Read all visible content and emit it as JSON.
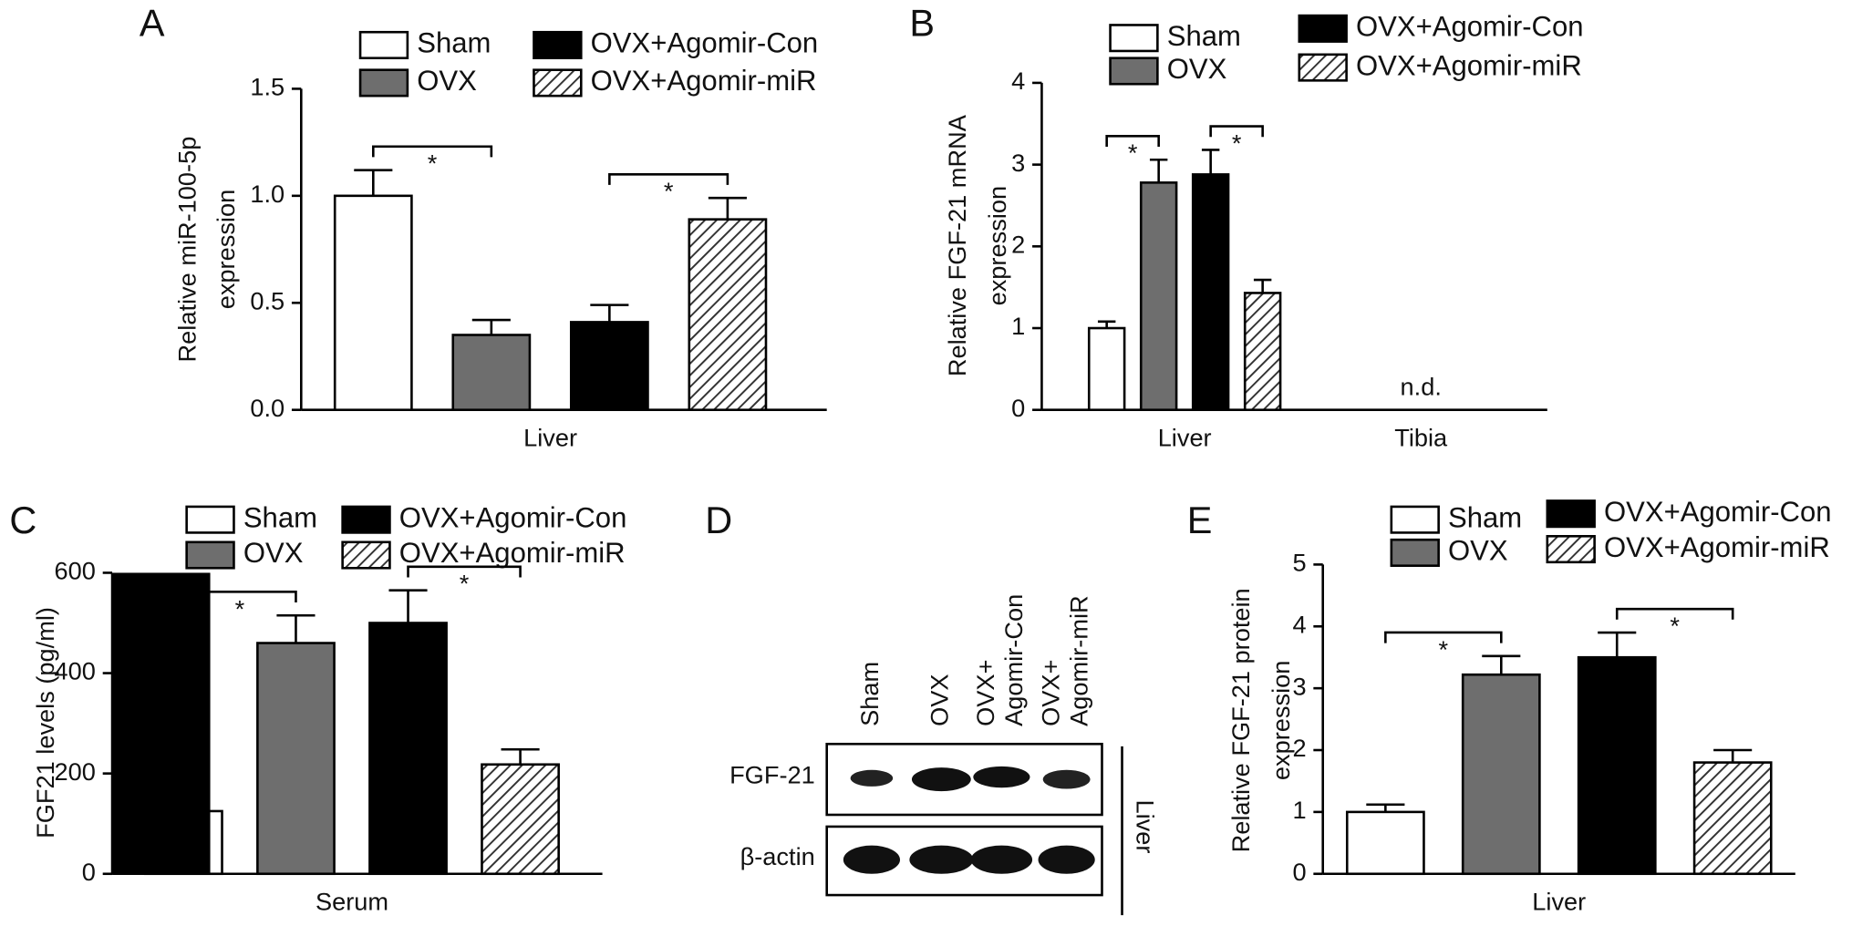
{
  "chart_data": [
    {
      "type": "bar",
      "panel": "A",
      "ylabel": [
        "Relative miR-100-5p",
        "expression"
      ],
      "categories": [
        "Liver"
      ],
      "series": [
        {
          "name": "Sham",
          "color": "#ffffff",
          "values": [
            1.0
          ],
          "errors": [
            0.12
          ]
        },
        {
          "name": "OVX",
          "color": "#6e6e6e",
          "values": [
            0.35
          ],
          "errors": [
            0.07
          ]
        },
        {
          "name": "OVX+Agomir-Con",
          "color": "#000000",
          "values": [
            0.41
          ],
          "errors": [
            0.08
          ]
        },
        {
          "name": "OVX+Agomir-miR",
          "color": "#ffffff",
          "pattern": "hatch",
          "values": [
            0.89
          ],
          "errors": [
            0.1
          ]
        }
      ],
      "ylim": [
        0,
        1.5
      ],
      "yticks": [
        {
          "value": 0,
          "label": "0.0"
        },
        0.5,
        {
          "value": 1,
          "label": "1.0"
        },
        1.5
      ],
      "significance": [
        {
          "between": [
            "Sham",
            "OVX"
          ],
          "label": "*"
        },
        {
          "between": [
            "OVX+Agomir-Con",
            "OVX+Agomir-miR"
          ],
          "label": "*"
        }
      ]
    },
    {
      "type": "bar",
      "panel": "B",
      "ylabel": [
        "Relative FGF-21 mRNA",
        "expression"
      ],
      "categories": [
        "Liver",
        "Tibia"
      ],
      "series": [
        {
          "name": "Sham",
          "color": "#ffffff",
          "values": [
            1.0,
            null
          ],
          "errors": [
            0.08,
            null
          ]
        },
        {
          "name": "OVX",
          "color": "#6e6e6e",
          "values": [
            2.78,
            null
          ],
          "errors": [
            0.28,
            null
          ]
        },
        {
          "name": "OVX+Agomir-Con",
          "color": "#000000",
          "values": [
            2.88,
            null
          ],
          "errors": [
            0.3,
            null
          ]
        },
        {
          "name": "OVX+Agomir-miR",
          "color": "#ffffff",
          "pattern": "hatch",
          "values": [
            1.43,
            null
          ],
          "errors": [
            0.16,
            null
          ]
        }
      ],
      "ylim": [
        0,
        4
      ],
      "yticks": [
        0,
        1,
        2,
        3,
        4
      ],
      "annotations": [
        {
          "category": "Tibia",
          "text": "n.d."
        }
      ],
      "significance": [
        {
          "between": [
            "Sham",
            "OVX"
          ],
          "label": "*"
        },
        {
          "between": [
            "OVX+Agomir-Con",
            "OVX+Agomir-miR"
          ],
          "label": "*"
        }
      ]
    },
    {
      "type": "bar",
      "panel": "C",
      "ylabel": [
        "FGF21 levels (pg/ml)"
      ],
      "categories": [
        "Serum"
      ],
      "series": [
        {
          "name": "Sham",
          "color": "#ffffff",
          "values": [
            125
          ],
          "errors": [
            null
          ]
        },
        {
          "name": "OVX",
          "color": "#6e6e6e",
          "values": [
            460
          ],
          "errors": [
            55
          ]
        },
        {
          "name": "OVX+Agomir-Con",
          "color": "#000000",
          "values": [
            500
          ],
          "errors": [
            65
          ]
        },
        {
          "name": "OVX+Agomir-miR",
          "color": "#ffffff",
          "pattern": "hatch",
          "values": [
            218
          ],
          "errors": [
            30
          ]
        }
      ],
      "ylim": [
        0,
        600
      ],
      "yticks": [
        0,
        200,
        400,
        600
      ],
      "significance": [
        {
          "between": [
            "Sham",
            "OVX"
          ],
          "label": "*"
        },
        {
          "between": [
            "OVX+Agomir-Con",
            "OVX+Agomir-miR"
          ],
          "label": "*"
        }
      ]
    },
    {
      "type": "bar",
      "panel": "E",
      "ylabel": [
        "Relative FGF-21 protein",
        "expression"
      ],
      "categories": [
        "Liver"
      ],
      "series": [
        {
          "name": "Sham",
          "color": "#ffffff",
          "values": [
            1.0
          ],
          "errors": [
            0.12
          ]
        },
        {
          "name": "OVX",
          "color": "#6e6e6e",
          "values": [
            3.22
          ],
          "errors": [
            0.3
          ]
        },
        {
          "name": "OVX+Agomir-Con",
          "color": "#000000",
          "values": [
            3.5
          ],
          "errors": [
            0.4
          ]
        },
        {
          "name": "OVX+Agomir-miR",
          "color": "#ffffff",
          "pattern": "hatch",
          "values": [
            1.8
          ],
          "errors": [
            0.2
          ]
        }
      ],
      "ylim": [
        0,
        5
      ],
      "yticks": [
        0,
        1,
        2,
        3,
        4,
        5
      ],
      "significance": [
        {
          "between": [
            "Sham",
            "OVX"
          ],
          "label": "*"
        },
        {
          "between": [
            "OVX+Agomir-Con",
            "OVX+Agomir-miR"
          ],
          "label": "*"
        }
      ]
    }
  ],
  "blot": {
    "panel": "D",
    "lanes": [
      [
        "Sham"
      ],
      [
        "OVX"
      ],
      [
        "OVX+",
        "Agomir-Con"
      ],
      [
        "OVX+",
        "Agomir-miR"
      ]
    ],
    "rows": [
      "FGF-21",
      "β-actin"
    ],
    "tissue": "Liver"
  }
}
